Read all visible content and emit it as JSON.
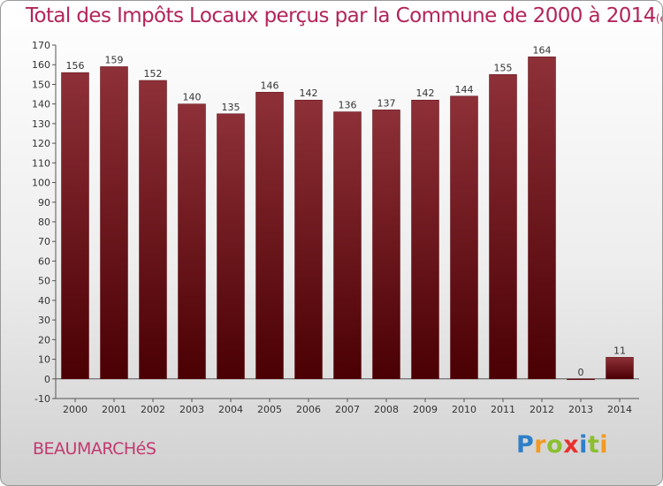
{
  "title": "Total des Impôts Locaux perçus par la Commune de 2000 à 2014",
  "title_unit": "(en milliers d'€)",
  "commune": "BEAUMARCHéS",
  "logo": {
    "letters": [
      {
        "ch": "P",
        "color": "#2e7fc8"
      },
      {
        "ch": "r",
        "color": "#f29a22"
      },
      {
        "ch": "o",
        "color": "#8bbf2f"
      },
      {
        "ch": "x",
        "color": "#e8312d"
      },
      {
        "ch": "i",
        "color": "#2e7fc8"
      },
      {
        "ch": "t",
        "color": "#8bbf2f"
      },
      {
        "ch": "i",
        "color": "#f29a22"
      }
    ]
  },
  "chart_data": {
    "type": "bar",
    "categories": [
      "2000",
      "2001",
      "2002",
      "2003",
      "2004",
      "2005",
      "2006",
      "2007",
      "2008",
      "2009",
      "2010",
      "2011",
      "2012",
      "2013",
      "2014"
    ],
    "values": [
      156,
      159,
      152,
      140,
      135,
      146,
      142,
      136,
      137,
      142,
      144,
      155,
      164,
      0,
      11
    ],
    "data_labels": [
      "156",
      "159",
      "152",
      "140",
      "135",
      "146",
      "142",
      "136",
      "137",
      "142",
      "144",
      "155",
      "164",
      "0",
      "11"
    ],
    "title": "Total des Impôts Locaux perçus par la Commune de 2000 à 2014",
    "xlabel": "",
    "ylabel": "",
    "ylim": [
      -10,
      170
    ],
    "yticks": [
      -10,
      0,
      10,
      20,
      30,
      40,
      50,
      60,
      70,
      80,
      90,
      100,
      110,
      120,
      130,
      140,
      150,
      160,
      170
    ],
    "grid": false,
    "bar_color": "#7a1a22"
  }
}
